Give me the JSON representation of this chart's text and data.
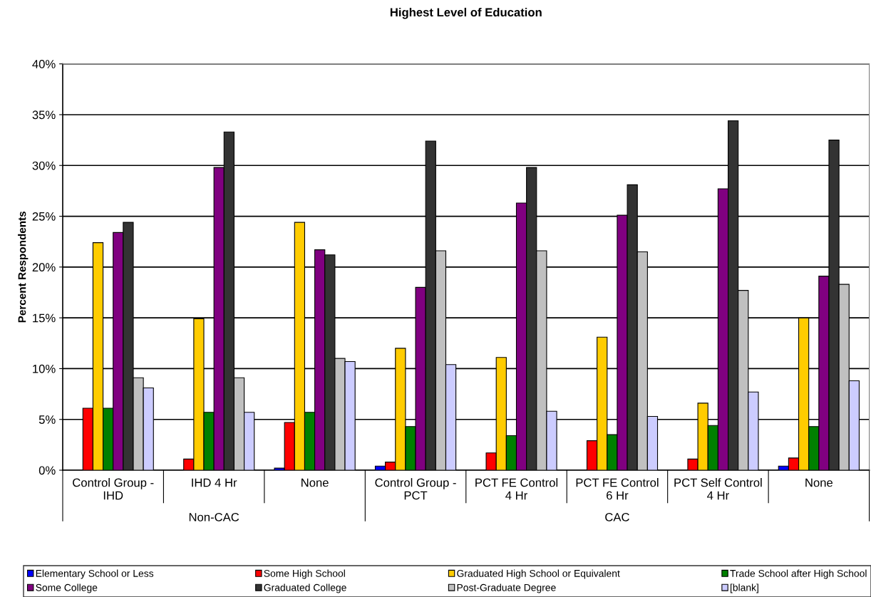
{
  "chart_data": {
    "type": "bar",
    "title": "Highest Level of Education",
    "ylabel": "Percent Respondents",
    "categories": [
      "Control Group -\nIHD",
      "IHD 4 Hr",
      "None",
      "Control Group -\nPCT",
      "PCT FE Control\n4 Hr",
      "PCT FE Control\n6 Hr",
      "PCT Self Control\n4 Hr",
      "None"
    ],
    "annotations": [
      "Non-CAC",
      "CAC"
    ],
    "series": [
      {
        "name": "Elementary School or Less",
        "color": "#0000ff",
        "values": [
          0,
          0,
          0.2,
          0.4,
          0,
          0,
          0,
          0.4
        ]
      },
      {
        "name": "Some High School",
        "color": "#ff0000",
        "values": [
          6.1,
          1.1,
          4.7,
          0.8,
          1.7,
          2.9,
          1.1,
          1.2
        ]
      },
      {
        "name": "Graduated High School or Equivalent",
        "color": "#ffcc00",
        "values": [
          22.4,
          14.9,
          24.4,
          12.0,
          11.1,
          13.1,
          6.6,
          15.0
        ]
      },
      {
        "name": "Trade School after High School",
        "color": "#008000",
        "values": [
          6.1,
          5.7,
          5.7,
          4.3,
          3.4,
          3.5,
          4.4,
          4.3
        ]
      },
      {
        "name": "Some College",
        "color": "#800080",
        "values": [
          23.4,
          29.8,
          21.7,
          18.0,
          26.3,
          25.1,
          27.7,
          19.1
        ]
      },
      {
        "name": "Graduated College",
        "color": "#333333",
        "values": [
          24.4,
          33.3,
          21.2,
          32.4,
          29.8,
          28.1,
          34.4,
          32.5
        ]
      },
      {
        "name": "Post-Graduate Degree",
        "color": "#c0c0c0",
        "values": [
          9.1,
          9.1,
          11.0,
          21.6,
          21.6,
          21.5,
          17.7,
          18.3
        ]
      },
      {
        "name": "[blank]",
        "color": "#ccccff",
        "values": [
          8.1,
          5.7,
          10.7,
          10.4,
          5.8,
          5.3,
          7.7,
          8.8
        ]
      }
    ],
    "ylim": [
      0,
      40
    ],
    "yticks": [
      {
        "value": 0,
        "label": "0%"
      },
      {
        "value": 5,
        "label": "5%"
      },
      {
        "value": 10,
        "label": "10%"
      },
      {
        "value": 15,
        "label": "15%"
      },
      {
        "value": 20,
        "label": "20%"
      },
      {
        "value": 25,
        "label": "25%"
      },
      {
        "value": 30,
        "label": "30%"
      },
      {
        "value": 35,
        "label": "35%"
      },
      {
        "value": 40,
        "label": "40%"
      }
    ],
    "grid": "y",
    "legend": "bottom"
  }
}
